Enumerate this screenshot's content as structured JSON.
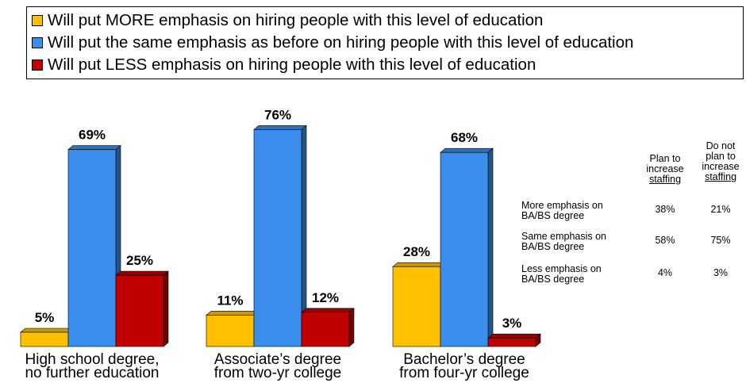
{
  "chart_data": {
    "type": "bar",
    "categories": [
      [
        "High school degree,",
        "no further education"
      ],
      [
        "Associate’s degree",
        "from two-yr college"
      ],
      [
        "Bachelor’s degree",
        "from four-yr college"
      ]
    ],
    "series": [
      {
        "name": "Will put MORE emphasis on hiring people with this level of education",
        "color": "#FFC000",
        "values": [
          5,
          11,
          28
        ]
      },
      {
        "name": "Will put the same emphasis as before on hiring people with this level of education",
        "color": "#3B8EEB",
        "values": [
          69,
          76,
          68
        ]
      },
      {
        "name": "Will put LESS emphasis on hiring people with this level of education",
        "color": "#C00000",
        "values": [
          25,
          12,
          3
        ]
      }
    ],
    "value_suffix": "%",
    "ylim": [
      0,
      80
    ],
    "legend_position": "top",
    "grid": false
  },
  "table": {
    "columns": [
      [
        "Plan to",
        "increase",
        "staffing"
      ],
      [
        "Do not",
        "plan to",
        "increase",
        "staffing"
      ]
    ],
    "rows": [
      {
        "label": [
          "More emphasis on",
          "BA/BS degree"
        ],
        "values": [
          "38%",
          "21%"
        ]
      },
      {
        "label": [
          "Same emphasis on",
          "BA/BS degree"
        ],
        "values": [
          "58%",
          "75%"
        ]
      },
      {
        "label": [
          "Less emphasis on",
          "BA/BS degree"
        ],
        "values": [
          "4%",
          "3%"
        ]
      }
    ]
  }
}
